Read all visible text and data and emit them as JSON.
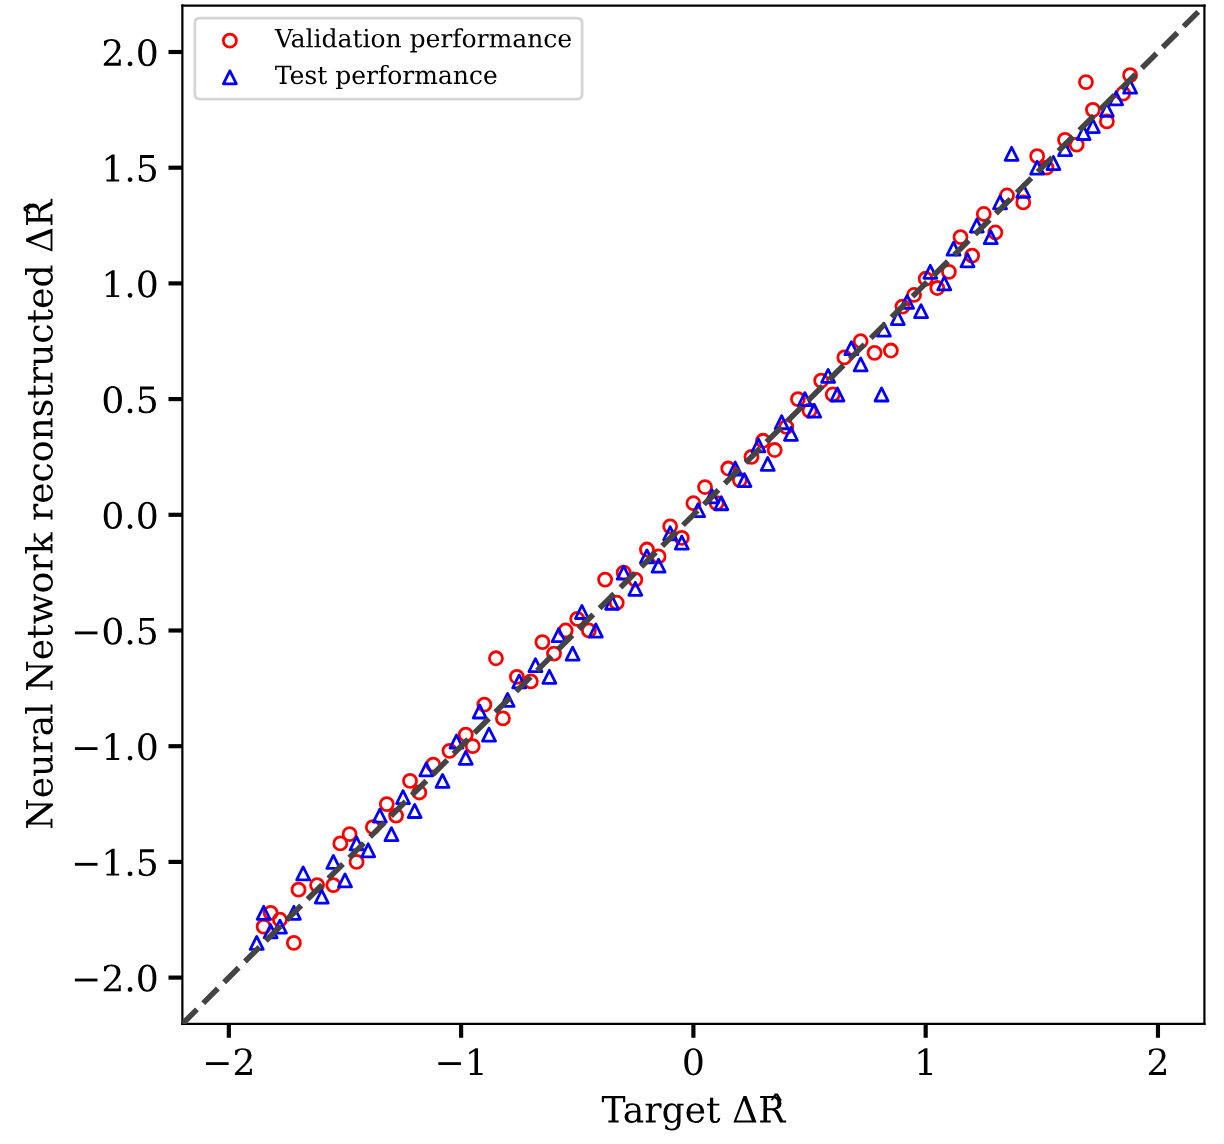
{
  "chart_data": {
    "type": "scatter",
    "xlabel": "Target ΔR̂",
    "ylabel": "Neural Network reconstructed ΔR̂",
    "xlim": [
      -2.2,
      2.2
    ],
    "ylim": [
      -2.2,
      2.2
    ],
    "xticks": [
      -2,
      -1,
      0,
      1,
      2
    ],
    "yticks": [
      {
        "value": -2,
        "label": "−2.0"
      },
      {
        "value": -1.5,
        "label": "−1.5"
      },
      {
        "value": -1,
        "label": "−1.0"
      },
      {
        "value": -0.5,
        "label": "−0.5"
      },
      {
        "value": 0,
        "label": "0.0"
      },
      {
        "value": 0.5,
        "label": "0.5"
      },
      {
        "value": 1,
        "label": "1.0"
      },
      {
        "value": 1.5,
        "label": "1.5"
      },
      {
        "value": 2,
        "label": "2.0"
      }
    ],
    "grid": false,
    "legend": "top left",
    "series": [
      {
        "name": "Validation performance",
        "color": "#ff0000",
        "marker": "circle",
        "x": [
          -1.85,
          -1.82,
          -1.78,
          -1.72,
          -1.7,
          -1.62,
          -1.55,
          -1.52,
          -1.48,
          -1.45,
          -1.38,
          -1.32,
          -1.28,
          -1.22,
          -1.18,
          -1.12,
          -1.05,
          -0.98,
          -0.95,
          -0.9,
          -0.85,
          -0.82,
          -0.76,
          -0.7,
          -0.65,
          -0.6,
          -0.55,
          -0.5,
          -0.45,
          -0.38,
          -0.33,
          -0.3,
          -0.25,
          -0.2,
          -0.15,
          -0.1,
          -0.05,
          0.0,
          0.05,
          0.1,
          0.15,
          0.2,
          0.25,
          0.3,
          0.35,
          0.4,
          0.45,
          0.5,
          0.55,
          0.6,
          0.65,
          0.72,
          0.78,
          0.85,
          0.9,
          0.95,
          1.0,
          1.05,
          1.1,
          1.15,
          1.2,
          1.25,
          1.3,
          1.35,
          1.42,
          1.48,
          1.52,
          1.6,
          1.65,
          1.69,
          1.72,
          1.78,
          1.85,
          1.88
        ],
        "values": [
          -1.78,
          -1.72,
          -1.75,
          -1.85,
          -1.62,
          -1.6,
          -1.6,
          -1.42,
          -1.38,
          -1.5,
          -1.35,
          -1.25,
          -1.3,
          -1.15,
          -1.2,
          -1.08,
          -1.02,
          -0.95,
          -1.0,
          -0.82,
          -0.62,
          -0.88,
          -0.7,
          -0.72,
          -0.55,
          -0.6,
          -0.5,
          -0.45,
          -0.5,
          -0.28,
          -0.38,
          -0.25,
          -0.28,
          -0.15,
          -0.18,
          -0.05,
          -0.1,
          0.05,
          0.12,
          0.05,
          0.2,
          0.15,
          0.25,
          0.32,
          0.28,
          0.38,
          0.5,
          0.45,
          0.58,
          0.52,
          0.68,
          0.75,
          0.7,
          0.71,
          0.9,
          0.95,
          1.02,
          0.98,
          1.05,
          1.2,
          1.12,
          1.3,
          1.22,
          1.38,
          1.35,
          1.55,
          1.5,
          1.62,
          1.6,
          1.87,
          1.75,
          1.7,
          1.82,
          1.9
        ]
      },
      {
        "name": "Test performance",
        "color": "#0000ff",
        "marker": "triangle",
        "x": [
          -1.88,
          -1.85,
          -1.82,
          -1.78,
          -1.72,
          -1.68,
          -1.6,
          -1.55,
          -1.5,
          -1.45,
          -1.4,
          -1.35,
          -1.3,
          -1.25,
          -1.2,
          -1.15,
          -1.08,
          -1.02,
          -0.98,
          -0.92,
          -0.88,
          -0.8,
          -0.75,
          -0.68,
          -0.62,
          -0.58,
          -0.52,
          -0.48,
          -0.42,
          -0.35,
          -0.3,
          -0.25,
          -0.2,
          -0.15,
          -0.1,
          -0.05,
          0.02,
          0.08,
          0.12,
          0.18,
          0.22,
          0.28,
          0.32,
          0.38,
          0.42,
          0.48,
          0.52,
          0.58,
          0.62,
          0.68,
          0.72,
          0.81,
          0.82,
          0.88,
          0.92,
          0.98,
          1.02,
          1.08,
          1.12,
          1.18,
          1.22,
          1.28,
          1.32,
          1.37,
          1.42,
          1.48,
          1.55,
          1.6,
          1.68,
          1.72,
          1.78,
          1.82,
          1.88
        ],
        "values": [
          -1.85,
          -1.72,
          -1.8,
          -1.78,
          -1.72,
          -1.55,
          -1.65,
          -1.5,
          -1.58,
          -1.42,
          -1.45,
          -1.3,
          -1.38,
          -1.22,
          -1.28,
          -1.1,
          -1.15,
          -0.98,
          -1.05,
          -0.85,
          -0.95,
          -0.8,
          -0.72,
          -0.65,
          -0.7,
          -0.52,
          -0.6,
          -0.42,
          -0.5,
          -0.38,
          -0.25,
          -0.32,
          -0.18,
          -0.22,
          -0.08,
          -0.12,
          0.02,
          0.08,
          0.05,
          0.2,
          0.15,
          0.3,
          0.22,
          0.4,
          0.35,
          0.5,
          0.45,
          0.6,
          0.52,
          0.72,
          0.65,
          0.52,
          0.8,
          0.85,
          0.92,
          0.88,
          1.05,
          1.0,
          1.15,
          1.1,
          1.25,
          1.2,
          1.35,
          1.56,
          1.4,
          1.5,
          1.52,
          1.58,
          1.65,
          1.68,
          1.75,
          1.8,
          1.85
        ]
      },
      {
        "type": "line",
        "color": "#444444",
        "line_style": "dashed",
        "marker": "none",
        "x": [
          -2.2,
          2.2
        ],
        "values": [
          -2.2,
          2.2
        ]
      }
    ]
  }
}
